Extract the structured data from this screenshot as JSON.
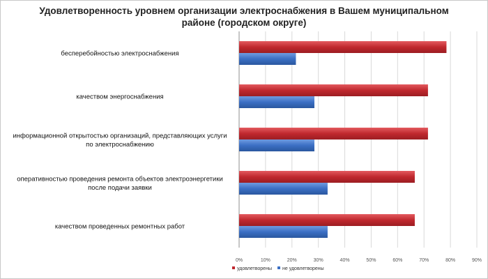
{
  "chart_data": {
    "type": "bar",
    "orientation": "horizontal",
    "title_lines": [
      "Удовлетворенность уровнем организации электроснабжения в Вашем муниципальном",
      "районе (городском округе)"
    ],
    "categories": [
      [
        "бесперебойностью  электроснабжения"
      ],
      [
        "качеством энергоснабжения"
      ],
      [
        "информационной открытостью организаций, представляющих услуги",
        "по электроснабжению"
      ],
      [
        "оперативностью проведения ремонта объектов электроэнергетики",
        "после подачи заявки"
      ],
      [
        "качеством проведенных ремонтных работ"
      ]
    ],
    "series": [
      {
        "name": "удовлетворены",
        "color": "#c0282e",
        "values": [
          78.5,
          71.5,
          71.5,
          66.5,
          66.5
        ]
      },
      {
        "name": "не удовлетворены",
        "color": "#3b6fc4",
        "values": [
          21.5,
          28.5,
          28.5,
          33.5,
          33.5
        ]
      }
    ],
    "x_ticks": [
      "0%",
      "10%",
      "20%",
      "30%",
      "40%",
      "50%",
      "60%",
      "70%",
      "80%",
      "90%"
    ],
    "xlim": [
      0,
      90
    ],
    "grid": true,
    "legend_position": "bottom"
  }
}
